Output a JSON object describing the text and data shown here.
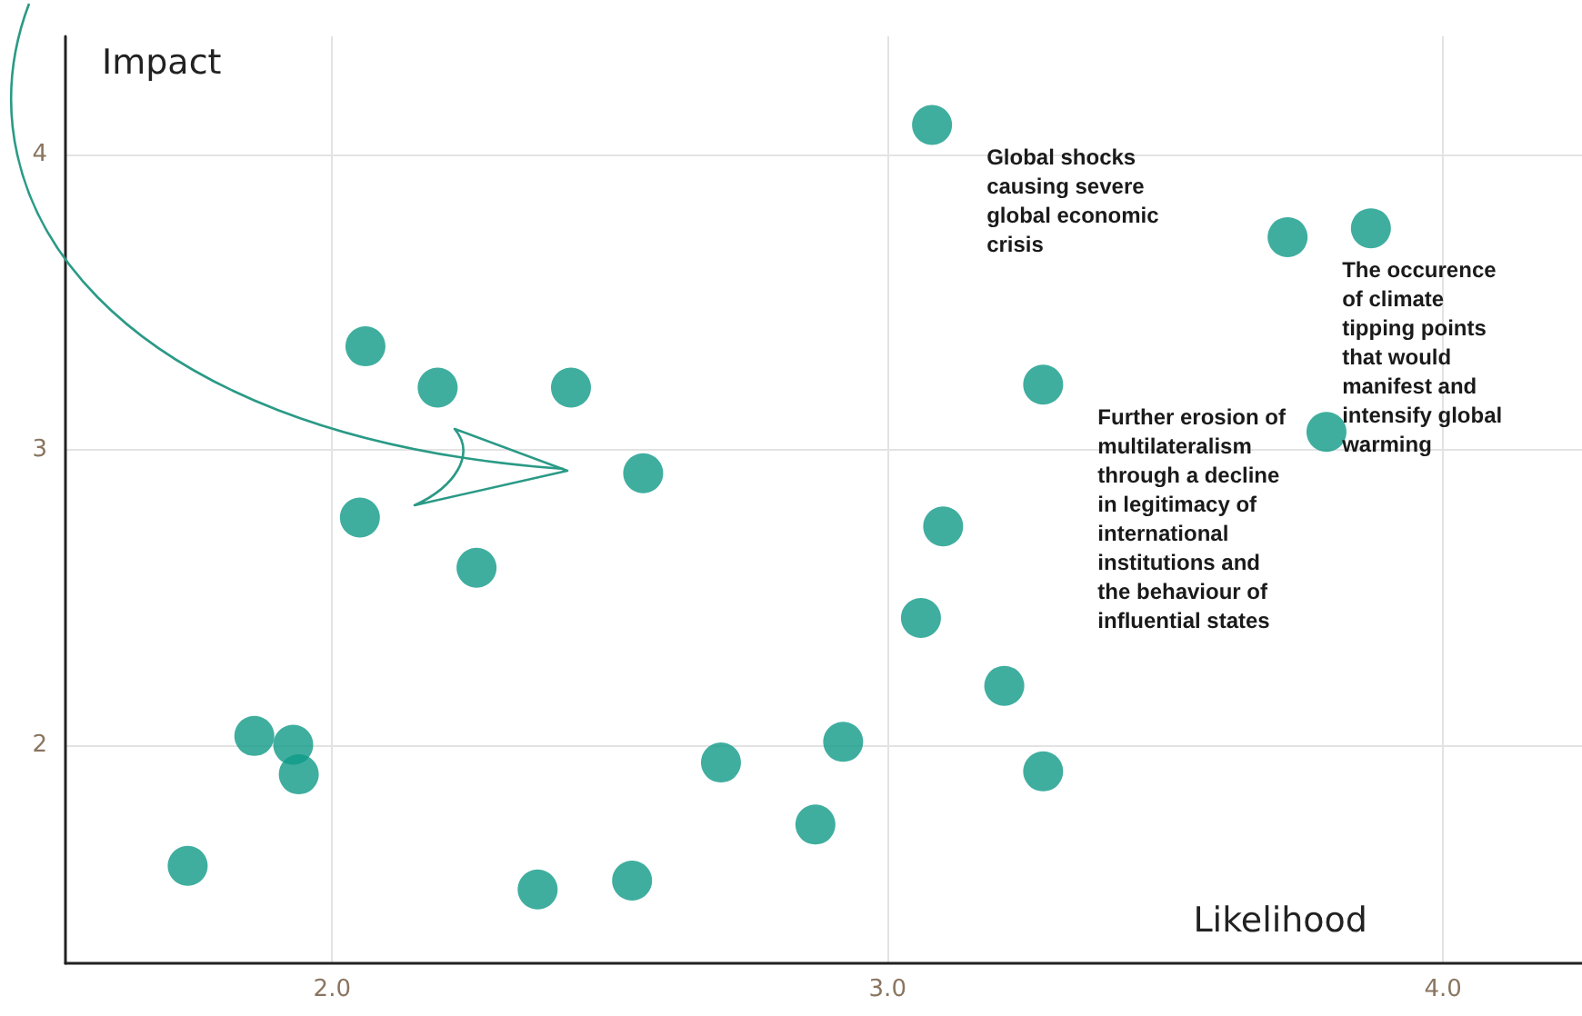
{
  "chart_data": {
    "type": "scatter",
    "xlabel": "Likelihood",
    "ylabel": "Impact",
    "x": [
      1.74,
      1.86,
      1.93,
      1.94,
      2.05,
      2.06,
      2.19,
      2.26,
      2.43,
      2.37,
      2.56,
      2.54,
      2.7,
      2.87,
      2.92,
      3.06,
      3.1,
      3.08,
      3.21,
      3.28,
      3.28,
      3.72,
      3.87,
      3.79
    ],
    "series": [
      {
        "color": "#0f9a87",
        "values": [
          1.59,
          2.03,
          2.0,
          1.9,
          2.77,
          3.35,
          3.21,
          2.6,
          3.21,
          1.51,
          2.92,
          1.54,
          1.94,
          1.73,
          2.01,
          2.43,
          2.74,
          4.1,
          2.2,
          3.22,
          1.91,
          3.72,
          3.75,
          3.06
        ]
      }
    ],
    "xlim": [
      1.52,
      4.25
    ],
    "ylim": [
      1.26,
      4.4
    ],
    "xticks": [
      {
        "value": 2,
        "label": "2.0"
      },
      {
        "value": 3,
        "label": "3.0"
      },
      {
        "value": 4,
        "label": "4.0"
      }
    ],
    "yticks": [
      2,
      3,
      4
    ],
    "grid": true,
    "marker": "circle",
    "annotations": [
      {
        "text": "Global shocks\ncausing severe\nglobal economic\ncrisis",
        "x": 3.08,
        "y": 4.1
      },
      {
        "text": "Further erosion of\nmultilateralism\nthrough a decline\nin legitimacy of\ninternational\ninstitutions and\nthe behaviour of\ninfluential states",
        "x": 3.28,
        "y": 3.22
      },
      {
        "text": "The occurence\nof climate\ntipping points\nthat would\nmanifest and\nintensify global\nwarming",
        "x": 3.72,
        "y": 3.72
      }
    ]
  }
}
